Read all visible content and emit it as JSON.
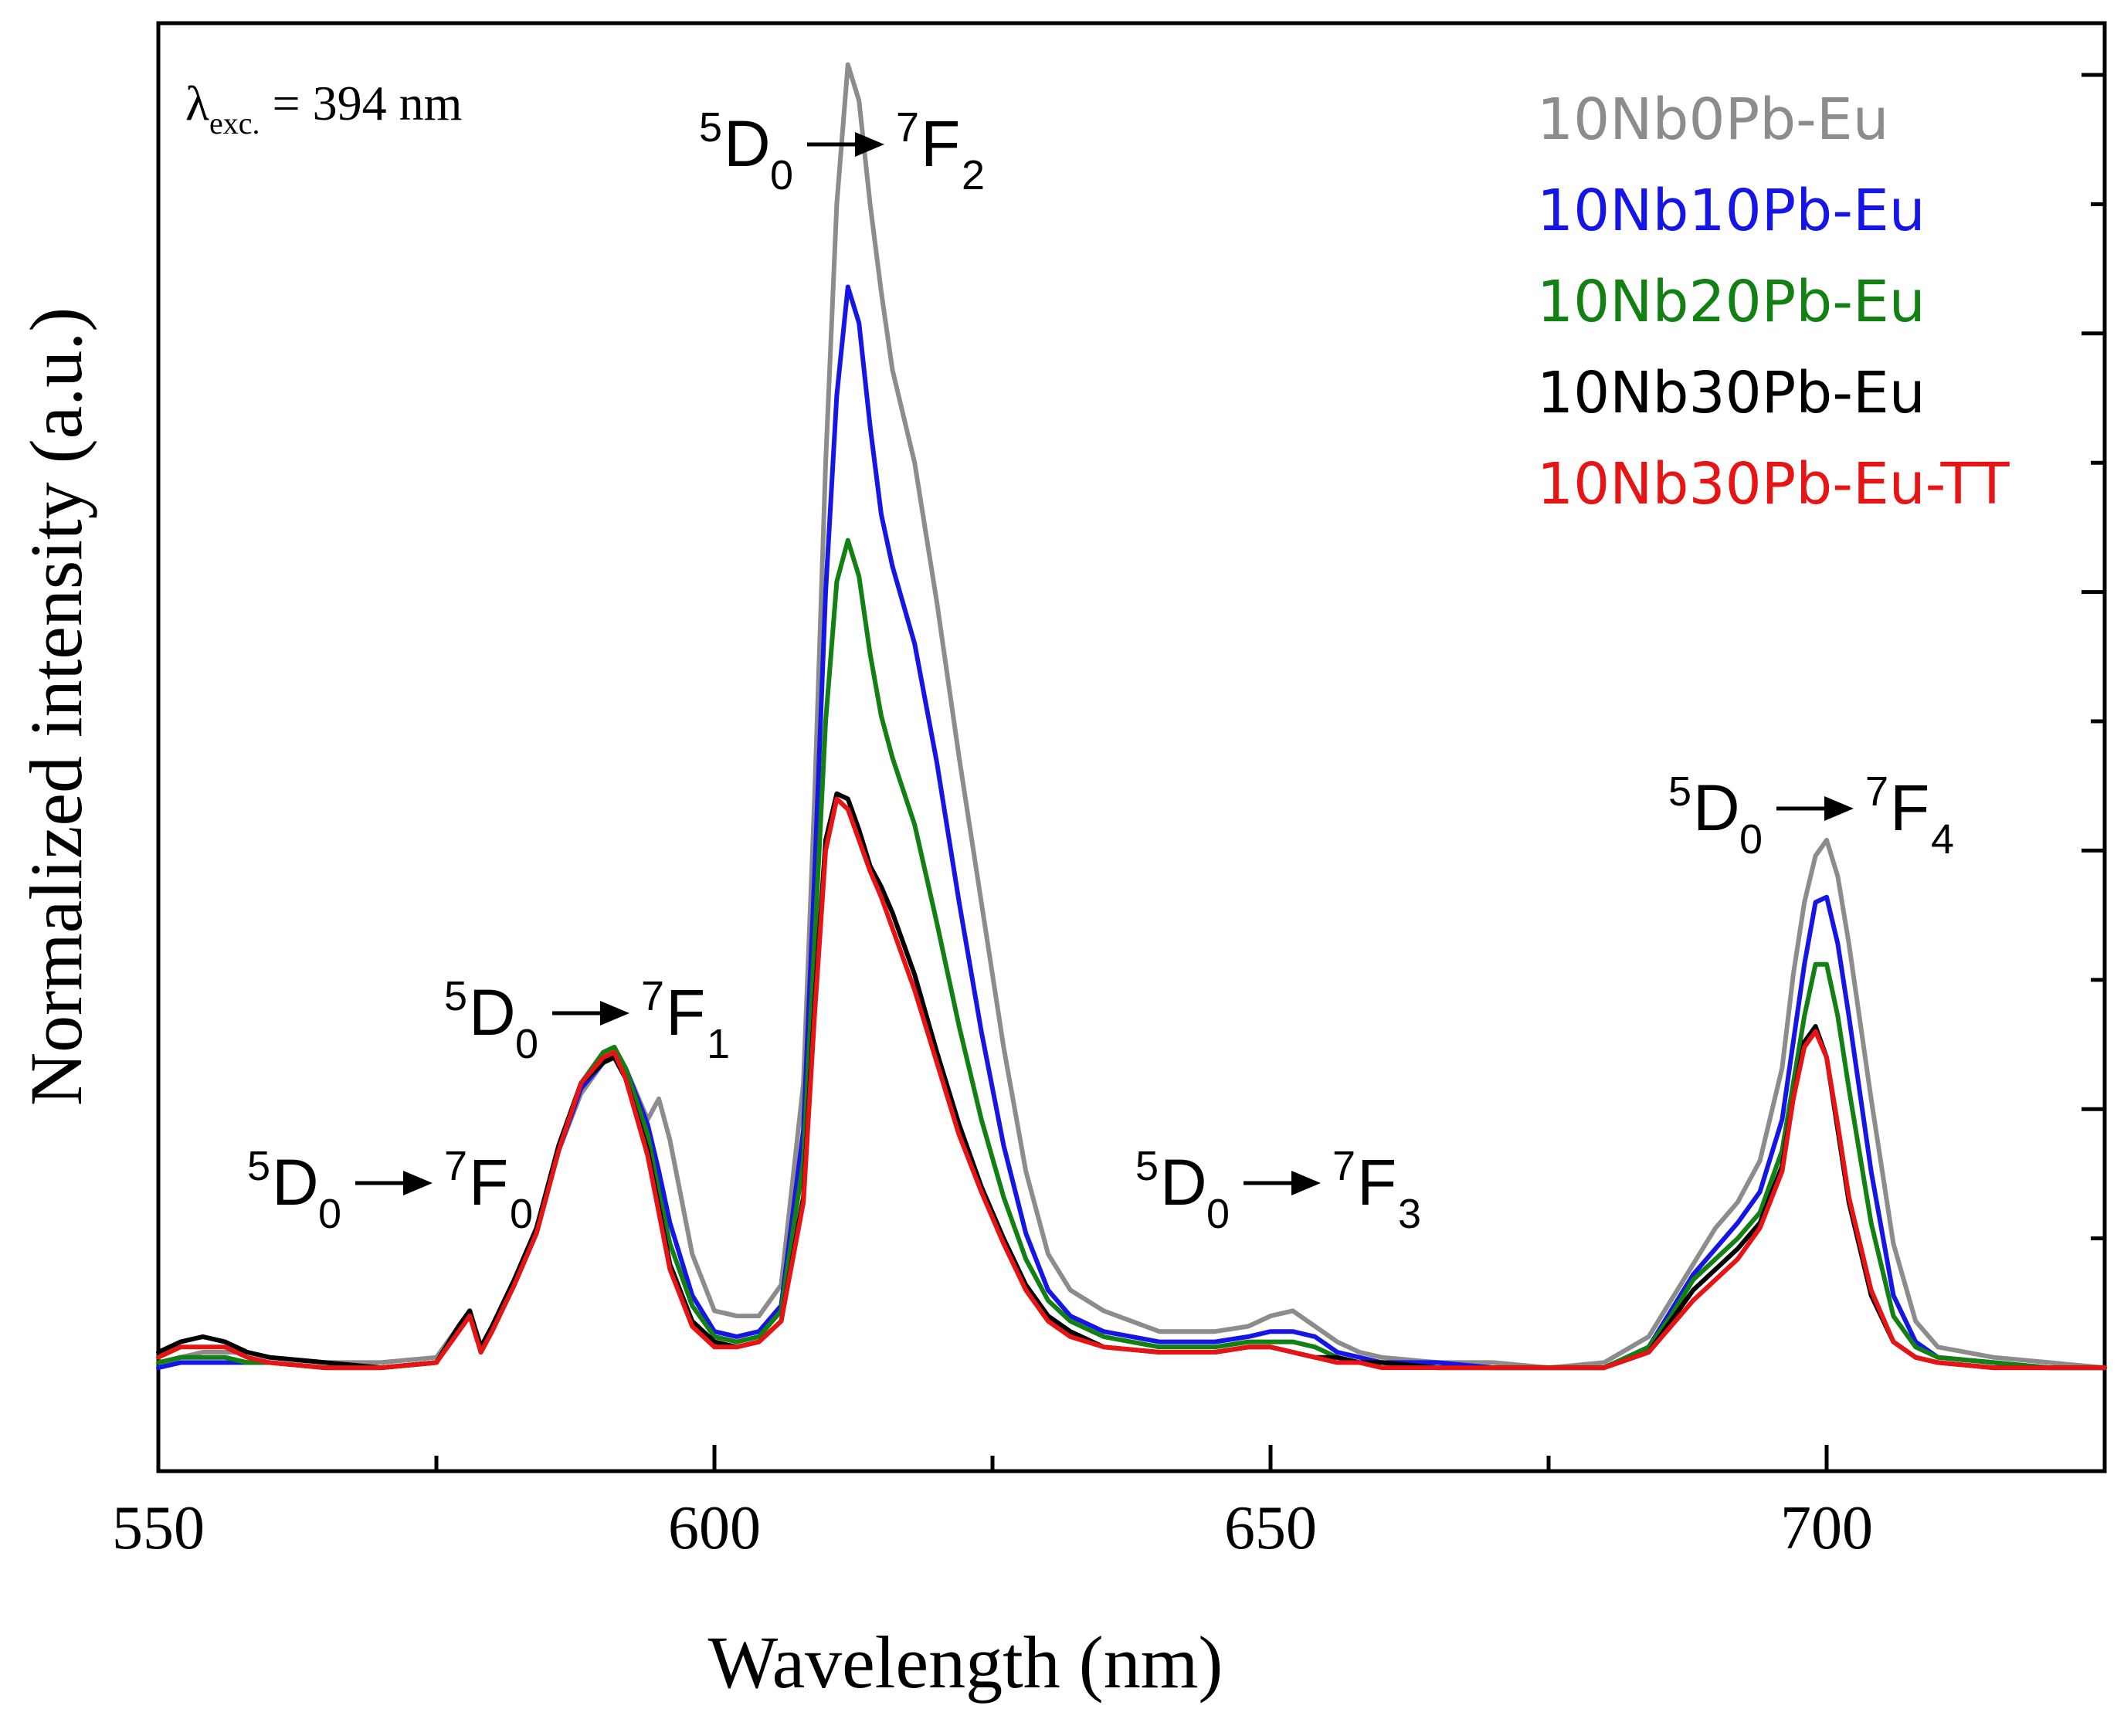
{
  "chart_data": {
    "type": "line",
    "xlabel": "Wavelength (nm)",
    "ylabel": "Normalized intensity (a.u.)",
    "xlim": [
      550,
      725
    ],
    "ylim": [
      -0.2,
      2.6
    ],
    "x_ticks": [
      "550",
      "600",
      "650",
      "700"
    ],
    "excitation": {
      "symbol": "λ",
      "subscript": "exc.",
      "text": " = 394 nm"
    },
    "legend": {
      "placement": "top-right"
    },
    "transitions": [
      {
        "upper": "D",
        "upper_sup": "5",
        "upper_sub": "0",
        "lower": "F",
        "lower_sup": "7",
        "lower_sub": "0",
        "x": 578
      },
      {
        "upper": "D",
        "upper_sup": "5",
        "upper_sub": "0",
        "lower": "F",
        "lower_sup": "7",
        "lower_sub": "1",
        "x": 591
      },
      {
        "upper": "D",
        "upper_sup": "5",
        "upper_sub": "0",
        "lower": "F",
        "lower_sup": "7",
        "lower_sub": "2",
        "x": 612
      },
      {
        "upper": "D",
        "upper_sup": "5",
        "upper_sub": "0",
        "lower": "F",
        "lower_sup": "7",
        "lower_sub": "3",
        "x": 650
      },
      {
        "upper": "D",
        "upper_sup": "5",
        "upper_sub": "0",
        "lower": "F",
        "lower_sup": "7",
        "lower_sub": "4",
        "x": 700
      }
    ],
    "x": [
      550,
      552,
      554,
      556,
      558,
      560,
      565,
      570,
      575,
      577,
      578,
      579,
      580,
      582,
      584,
      586,
      588,
      590,
      591,
      592,
      594,
      595,
      596,
      598,
      600,
      602,
      604,
      606,
      608,
      609,
      610,
      611,
      612,
      613,
      614,
      615,
      616,
      618,
      620,
      622,
      624,
      626,
      628,
      630,
      632,
      635,
      640,
      645,
      648,
      650,
      652,
      654,
      656,
      658,
      660,
      665,
      670,
      675,
      680,
      684,
      686,
      688,
      690,
      692,
      694,
      696,
      697,
      698,
      699,
      700,
      701,
      702,
      704,
      706,
      708,
      710,
      715,
      720,
      725
    ],
    "series": [
      {
        "name": "10Nb0Pb-Eu",
        "color": "#8c8c8c",
        "values": [
          0.0,
          0.02,
          0.03,
          0.03,
          0.03,
          0.02,
          0.01,
          0.01,
          0.02,
          0.08,
          0.11,
          0.04,
          0.08,
          0.17,
          0.27,
          0.42,
          0.53,
          0.59,
          0.61,
          0.58,
          0.48,
          0.52,
          0.44,
          0.22,
          0.11,
          0.1,
          0.1,
          0.16,
          0.55,
          1.1,
          1.75,
          2.25,
          2.52,
          2.45,
          2.25,
          2.08,
          1.93,
          1.75,
          1.48,
          1.18,
          0.9,
          0.62,
          0.38,
          0.22,
          0.15,
          0.11,
          0.07,
          0.07,
          0.08,
          0.1,
          0.11,
          0.08,
          0.05,
          0.03,
          0.02,
          0.01,
          0.01,
          0.0,
          0.01,
          0.06,
          0.13,
          0.2,
          0.27,
          0.32,
          0.4,
          0.58,
          0.76,
          0.9,
          0.99,
          1.02,
          0.95,
          0.82,
          0.52,
          0.24,
          0.09,
          0.04,
          0.02,
          0.01,
          0.0
        ]
      },
      {
        "name": "10Nb10Pb-Eu",
        "color": "#1515e6",
        "values": [
          0.0,
          0.01,
          0.01,
          0.01,
          0.01,
          0.01,
          0.0,
          0.0,
          0.01,
          0.08,
          0.11,
          0.03,
          0.07,
          0.16,
          0.26,
          0.42,
          0.54,
          0.59,
          0.61,
          0.58,
          0.47,
          0.38,
          0.28,
          0.14,
          0.07,
          0.06,
          0.07,
          0.12,
          0.46,
          0.95,
          1.5,
          1.88,
          2.09,
          2.02,
          1.82,
          1.65,
          1.55,
          1.4,
          1.17,
          0.9,
          0.65,
          0.43,
          0.26,
          0.15,
          0.1,
          0.07,
          0.05,
          0.05,
          0.06,
          0.07,
          0.07,
          0.06,
          0.03,
          0.02,
          0.01,
          0.01,
          0.0,
          0.0,
          0.0,
          0.04,
          0.11,
          0.18,
          0.23,
          0.28,
          0.34,
          0.48,
          0.63,
          0.78,
          0.9,
          0.91,
          0.82,
          0.68,
          0.38,
          0.14,
          0.05,
          0.02,
          0.01,
          0.0,
          0.0
        ]
      },
      {
        "name": "10Nb20Pb-Eu",
        "color": "#128012",
        "values": [
          0.01,
          0.02,
          0.02,
          0.02,
          0.01,
          0.01,
          0.0,
          0.0,
          0.01,
          0.08,
          0.11,
          0.03,
          0.07,
          0.16,
          0.26,
          0.42,
          0.55,
          0.61,
          0.62,
          0.58,
          0.45,
          0.34,
          0.24,
          0.12,
          0.06,
          0.05,
          0.06,
          0.11,
          0.4,
          0.82,
          1.25,
          1.52,
          1.6,
          1.53,
          1.38,
          1.26,
          1.18,
          1.05,
          0.86,
          0.66,
          0.48,
          0.33,
          0.21,
          0.13,
          0.09,
          0.06,
          0.04,
          0.04,
          0.05,
          0.05,
          0.05,
          0.04,
          0.02,
          0.01,
          0.01,
          0.0,
          0.0,
          0.0,
          0.0,
          0.04,
          0.1,
          0.17,
          0.21,
          0.25,
          0.3,
          0.42,
          0.55,
          0.68,
          0.78,
          0.78,
          0.68,
          0.54,
          0.28,
          0.1,
          0.04,
          0.02,
          0.01,
          0.0,
          0.0
        ]
      },
      {
        "name": "10Nb30Pb-Eu",
        "color": "#000000",
        "values": [
          0.03,
          0.05,
          0.06,
          0.05,
          0.03,
          0.02,
          0.01,
          0.0,
          0.01,
          0.08,
          0.11,
          0.04,
          0.08,
          0.17,
          0.27,
          0.43,
          0.55,
          0.59,
          0.6,
          0.56,
          0.42,
          0.31,
          0.2,
          0.09,
          0.05,
          0.04,
          0.05,
          0.09,
          0.33,
          0.7,
          1.02,
          1.11,
          1.1,
          1.04,
          0.97,
          0.93,
          0.88,
          0.76,
          0.61,
          0.47,
          0.35,
          0.25,
          0.16,
          0.1,
          0.07,
          0.04,
          0.03,
          0.03,
          0.04,
          0.04,
          0.03,
          0.02,
          0.02,
          0.01,
          0.01,
          0.0,
          0.0,
          0.0,
          0.0,
          0.03,
          0.09,
          0.15,
          0.19,
          0.23,
          0.28,
          0.39,
          0.52,
          0.63,
          0.66,
          0.6,
          0.46,
          0.32,
          0.14,
          0.05,
          0.02,
          0.01,
          0.0,
          0.0,
          0.0
        ]
      },
      {
        "name": "10Nb30Pb-Eu-TT",
        "color": "#e61414",
        "values": [
          0.02,
          0.04,
          0.04,
          0.04,
          0.02,
          0.01,
          0.0,
          0.0,
          0.01,
          0.07,
          0.1,
          0.03,
          0.07,
          0.16,
          0.26,
          0.42,
          0.55,
          0.6,
          0.61,
          0.56,
          0.41,
          0.3,
          0.19,
          0.08,
          0.04,
          0.04,
          0.05,
          0.09,
          0.32,
          0.68,
          1.0,
          1.1,
          1.08,
          1.02,
          0.96,
          0.91,
          0.85,
          0.73,
          0.59,
          0.45,
          0.34,
          0.24,
          0.15,
          0.09,
          0.06,
          0.04,
          0.03,
          0.03,
          0.04,
          0.04,
          0.03,
          0.02,
          0.01,
          0.01,
          0.0,
          0.0,
          0.0,
          0.0,
          0.0,
          0.03,
          0.08,
          0.13,
          0.17,
          0.21,
          0.27,
          0.38,
          0.52,
          0.62,
          0.65,
          0.6,
          0.47,
          0.33,
          0.15,
          0.05,
          0.02,
          0.01,
          0.0,
          0.0,
          0.0
        ]
      }
    ]
  }
}
